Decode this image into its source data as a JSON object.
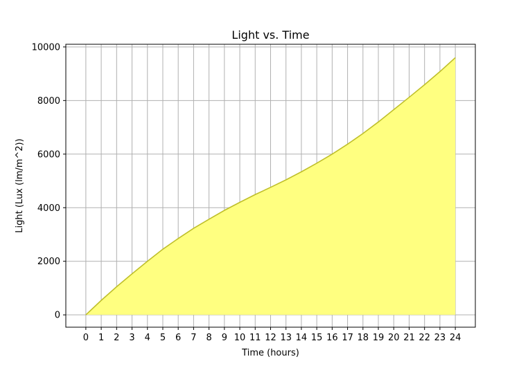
{
  "chart_data": {
    "type": "area",
    "title": "Light vs. Time",
    "xlabel": "Time (hours)",
    "ylabel": "Light (Lux (lm/m^2))",
    "x": [
      0,
      1,
      2,
      3,
      4,
      5,
      6,
      7,
      8,
      9,
      10,
      11,
      12,
      13,
      14,
      15,
      16,
      17,
      18,
      19,
      20,
      21,
      22,
      23,
      24
    ],
    "y": [
      0,
      540,
      1050,
      1530,
      2000,
      2450,
      2850,
      3230,
      3570,
      3900,
      4200,
      4490,
      4760,
      5040,
      5340,
      5660,
      6000,
      6370,
      6770,
      7200,
      7660,
      8120,
      8590,
      9080,
      9600
    ],
    "xlim": [
      -1.3,
      25.3
    ],
    "ylim": [
      -460,
      10100
    ],
    "xticks": [
      0,
      1,
      2,
      3,
      4,
      5,
      6,
      7,
      8,
      9,
      10,
      11,
      12,
      13,
      14,
      15,
      16,
      17,
      18,
      19,
      20,
      21,
      22,
      23,
      24
    ],
    "yticks": [
      0,
      2000,
      4000,
      6000,
      8000,
      10000
    ],
    "grid": true,
    "colors": {
      "line": "#bfbf2a",
      "fill": "#ffff80",
      "grid": "#b0b0b0",
      "axes": "#000000"
    }
  }
}
